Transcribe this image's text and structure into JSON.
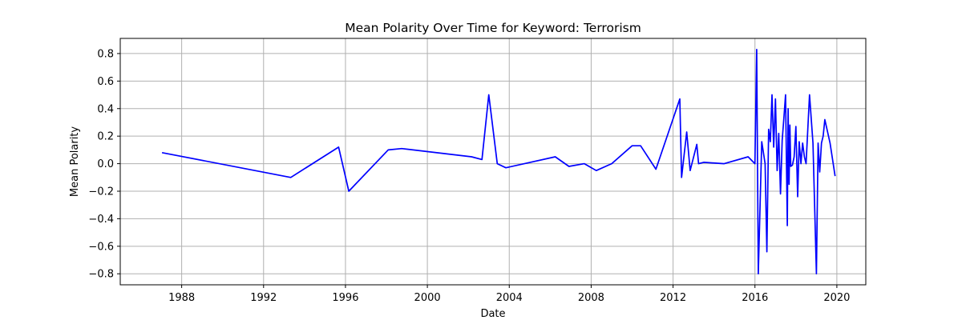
{
  "chart_data": {
    "type": "line",
    "title": "Mean Polarity Over Time for Keyword: Terrorism",
    "xlabel": "Date",
    "ylabel": "Mean Polarity",
    "xlim": [
      "1985-01-01",
      "2021-06-01"
    ],
    "ylim": [
      -0.88,
      0.91
    ],
    "x_ticks": [
      "1988",
      "1992",
      "1996",
      "2000",
      "2004",
      "2008",
      "2012",
      "2016",
      "2020"
    ],
    "y_ticks": [
      "0.8",
      "0.6",
      "0.4",
      "0.2",
      "0.0",
      "−0.2",
      "−0.4",
      "−0.6",
      "−0.8"
    ],
    "grid": true,
    "line_color": "#0000ff",
    "series": [
      {
        "x": [
          "1987-01-15",
          "1993-05-01",
          "1995-09-01",
          "1996-03-01",
          "1998-02-01",
          "1998-10-01",
          "2002-03-01",
          "2002-09-01",
          "2003-01-01",
          "2003-06-01",
          "2003-11-01",
          "2006-04-01",
          "2006-12-01",
          "2007-09-01",
          "2008-04-01",
          "2009-01-01",
          "2010-01-01",
          "2010-06-01",
          "2011-03-01",
          "2012-05-01",
          "2012-06-01",
          "2012-09-01",
          "2012-11-01",
          "2013-03-01",
          "2013-04-01",
          "2013-07-01",
          "2014-07-01",
          "2015-09-01",
          "2016-01-01",
          "2016-02-01",
          "2016-03-01",
          "2016-05-01",
          "2016-07-01",
          "2016-08-01",
          "2016-09-01",
          "2016-10-01",
          "2016-11-01",
          "2016-12-01",
          "2017-01-01",
          "2017-02-01",
          "2017-03-01",
          "2017-04-01",
          "2017-05-01",
          "2017-06-01",
          "2017-07-01",
          "2017-08-01",
          "2017-08-15",
          "2017-09-01",
          "2017-09-15",
          "2017-10-01",
          "2017-11-01",
          "2017-12-01",
          "2018-01-01",
          "2018-02-01",
          "2018-03-01",
          "2018-04-01",
          "2018-05-01",
          "2018-06-01",
          "2018-07-01",
          "2018-09-01",
          "2018-11-01",
          "2019-01-01",
          "2019-02-01",
          "2019-03-01",
          "2019-04-01",
          "2019-05-01",
          "2019-06-01",
          "2019-09-01",
          "2019-12-01"
        ],
        "y": [
          0.08,
          -0.1,
          0.12,
          -0.2,
          0.1,
          0.11,
          0.05,
          0.03,
          0.5,
          0.0,
          -0.03,
          0.05,
          -0.02,
          0.0,
          -0.05,
          0.0,
          0.13,
          0.13,
          -0.04,
          0.47,
          -0.1,
          0.23,
          -0.05,
          0.14,
          0.0,
          0.01,
          0.0,
          0.05,
          0.0,
          0.83,
          -0.8,
          0.16,
          0.0,
          -0.64,
          0.25,
          0.16,
          0.5,
          0.12,
          0.47,
          -0.05,
          0.22,
          -0.22,
          0.17,
          0.33,
          0.5,
          -0.45,
          0.4,
          -0.15,
          0.28,
          -0.02,
          -0.01,
          0.05,
          0.27,
          -0.24,
          0.16,
          0.0,
          0.15,
          0.05,
          0.0,
          0.5,
          0.15,
          -0.8,
          0.15,
          -0.06,
          0.15,
          0.2,
          0.32,
          0.15,
          -0.09
        ]
      }
    ]
  }
}
